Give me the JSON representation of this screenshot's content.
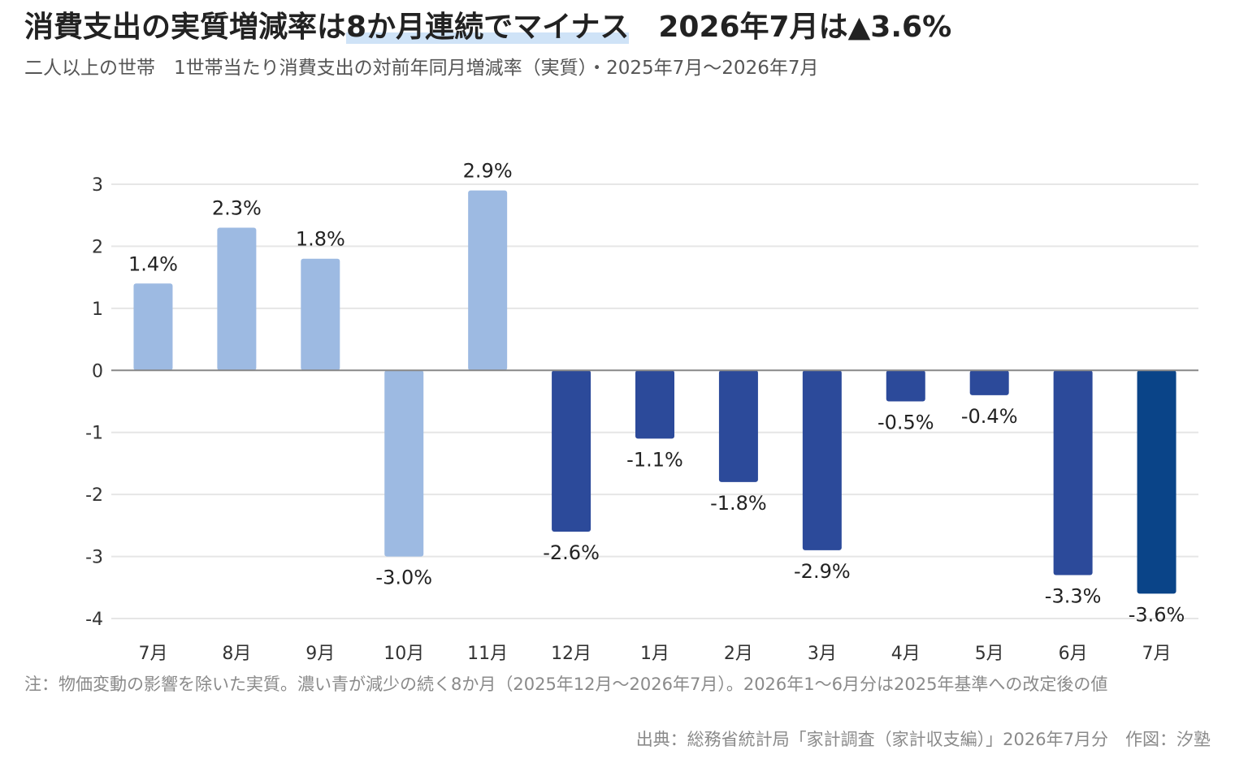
{
  "header": {
    "title_main": "消費支出の実質増減率は",
    "title_highlight": "8か月連続でマイナス",
    "title_tail": "2026年7月は▲3.6%",
    "subtitle": "二人以上の世帯　1世帯当たり消費支出の対前年同月増減率（実質）・2025年7月〜2026年7月"
  },
  "footer": {
    "note": "注：物価変動の影響を除いた実質。濃い青が減少の続く8か月（2025年12月〜2026年7月）。2026年1〜6月分は2025年基準への改定後の値",
    "source": "出典：総務省統計局「家計調査（家計収支編）」2026年7月分　作図：汐塾"
  },
  "chart_data": {
    "type": "bar",
    "categories": [
      "7月",
      "8月",
      "9月",
      "10月",
      "11月",
      "12月",
      "1月",
      "2月",
      "3月",
      "4月",
      "5月",
      "6月",
      "7月"
    ],
    "values": [
      1.4,
      2.3,
      1.8,
      -3.0,
      2.9,
      -2.6,
      -1.1,
      -1.8,
      -2.9,
      -0.5,
      -0.4,
      -3.3,
      -3.6
    ],
    "data_labels": [
      "1.4%",
      "2.3%",
      "1.8%",
      "-3.0%",
      "2.9%",
      "-2.6%",
      "-1.1%",
      "-1.8%",
      "-2.9%",
      "-0.5%",
      "-0.4%",
      "-3.3%",
      "-3.6%"
    ],
    "bar_colors": [
      "#9dbae2",
      "#9dbae2",
      "#9dbae2",
      "#9dbae2",
      "#9dbae2",
      "#2c4a9a",
      "#2c4a9a",
      "#2c4a9a",
      "#2c4a9a",
      "#2c4a9a",
      "#2c4a9a",
      "#2c4a9a",
      "#0a4488"
    ],
    "ylim": [
      -4,
      3
    ],
    "yticks": [
      3,
      2,
      1,
      0,
      -1,
      -2,
      -3,
      -4
    ],
    "grid": true,
    "xlabel": "",
    "ylabel": ""
  },
  "colors": {
    "light_bar": "#9dbae2",
    "dark_bar": "#2c4a9a",
    "latest_bar": "#0a4488",
    "gridline": "#e6e6e6",
    "zero_line": "#888888",
    "highlight": "#cfe3f7"
  }
}
